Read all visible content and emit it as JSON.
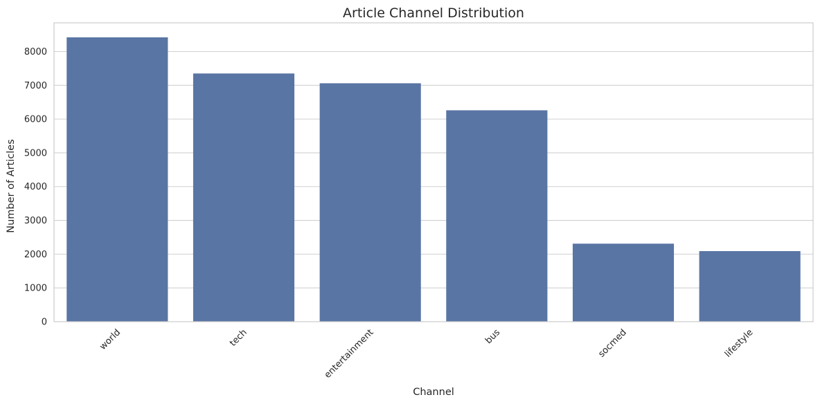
{
  "chart_data": {
    "type": "bar",
    "title": "Article Channel Distribution",
    "xlabel": "Channel",
    "ylabel": "Number of Articles",
    "categories": [
      "world",
      "tech",
      "entertainment",
      "bus",
      "socmed",
      "lifestyle"
    ],
    "values": [
      8420,
      7350,
      7060,
      6260,
      2310,
      2090
    ],
    "ylim": [
      0,
      8850
    ],
    "yticks": [
      0,
      1000,
      2000,
      3000,
      4000,
      5000,
      6000,
      7000,
      8000
    ],
    "grid": "horizontal",
    "legend": "none",
    "bar_color": "#5975a4",
    "grid_color": "#d0d0d0",
    "frame_color": "#cccccc"
  }
}
